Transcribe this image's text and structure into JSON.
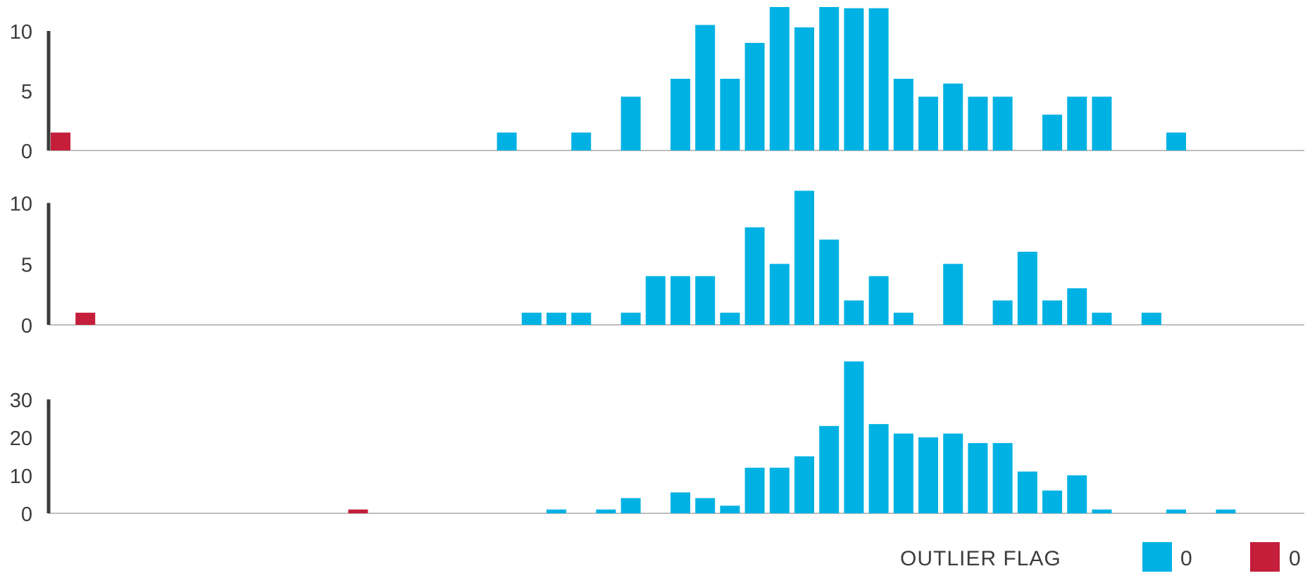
{
  "colors": {
    "normal": "#00b2e3",
    "outlier": "#c41e3a",
    "axis": "#3c3c3c",
    "baseline": "#bdbdbd"
  },
  "legend": {
    "title": "OUTLIER FLAG",
    "items": [
      {
        "label": "0",
        "color": "#00b2e3"
      },
      {
        "label": "0",
        "color": "#c41e3a"
      }
    ]
  },
  "chart_data": [
    {
      "type": "bar",
      "ylim": [
        0,
        12
      ],
      "yticks": [
        0,
        5,
        10
      ],
      "bars": [
        {
          "x": 0,
          "value": 1.5,
          "group": "outlier"
        },
        {
          "x": 18,
          "value": 1.5,
          "group": "normal"
        },
        {
          "x": 21,
          "value": 1.5,
          "group": "normal"
        },
        {
          "x": 23,
          "value": 4.5,
          "group": "normal"
        },
        {
          "x": 25,
          "value": 6,
          "group": "normal"
        },
        {
          "x": 26,
          "value": 10.5,
          "group": "normal"
        },
        {
          "x": 27,
          "value": 6,
          "group": "normal"
        },
        {
          "x": 28,
          "value": 9,
          "group": "normal"
        },
        {
          "x": 29,
          "value": 12,
          "group": "normal"
        },
        {
          "x": 30,
          "value": 10.3,
          "group": "normal"
        },
        {
          "x": 31,
          "value": 12,
          "group": "normal"
        },
        {
          "x": 32,
          "value": 11.9,
          "group": "normal"
        },
        {
          "x": 33,
          "value": 11.9,
          "group": "normal"
        },
        {
          "x": 34,
          "value": 6,
          "group": "normal"
        },
        {
          "x": 35,
          "value": 4.5,
          "group": "normal"
        },
        {
          "x": 36,
          "value": 5.6,
          "group": "normal"
        },
        {
          "x": 37,
          "value": 4.5,
          "group": "normal"
        },
        {
          "x": 38,
          "value": 4.5,
          "group": "normal"
        },
        {
          "x": 40,
          "value": 3,
          "group": "normal"
        },
        {
          "x": 41,
          "value": 4.5,
          "group": "normal"
        },
        {
          "x": 42,
          "value": 4.5,
          "group": "normal"
        },
        {
          "x": 45,
          "value": 1.5,
          "group": "normal"
        }
      ]
    },
    {
      "type": "bar",
      "ylim": [
        0,
        12
      ],
      "yticks": [
        0,
        5,
        10
      ],
      "bars": [
        {
          "x": 1,
          "value": 1,
          "group": "outlier"
        },
        {
          "x": 19,
          "value": 1,
          "group": "normal"
        },
        {
          "x": 20,
          "value": 1,
          "group": "normal"
        },
        {
          "x": 21,
          "value": 1,
          "group": "normal"
        },
        {
          "x": 23,
          "value": 1,
          "group": "normal"
        },
        {
          "x": 24,
          "value": 4,
          "group": "normal"
        },
        {
          "x": 25,
          "value": 4,
          "group": "normal"
        },
        {
          "x": 26,
          "value": 4,
          "group": "normal"
        },
        {
          "x": 27,
          "value": 1,
          "group": "normal"
        },
        {
          "x": 28,
          "value": 8,
          "group": "normal"
        },
        {
          "x": 29,
          "value": 5,
          "group": "normal"
        },
        {
          "x": 30,
          "value": 11,
          "group": "normal"
        },
        {
          "x": 31,
          "value": 7,
          "group": "normal"
        },
        {
          "x": 32,
          "value": 2,
          "group": "normal"
        },
        {
          "x": 33,
          "value": 4,
          "group": "normal"
        },
        {
          "x": 34,
          "value": 1,
          "group": "normal"
        },
        {
          "x": 36,
          "value": 5,
          "group": "normal"
        },
        {
          "x": 38,
          "value": 2,
          "group": "normal"
        },
        {
          "x": 39,
          "value": 6,
          "group": "normal"
        },
        {
          "x": 40,
          "value": 2,
          "group": "normal"
        },
        {
          "x": 41,
          "value": 3,
          "group": "normal"
        },
        {
          "x": 42,
          "value": 1,
          "group": "normal"
        },
        {
          "x": 44,
          "value": 1,
          "group": "normal"
        }
      ]
    },
    {
      "type": "bar",
      "ylim": [
        0,
        40
      ],
      "yticks": [
        0,
        10,
        20,
        30
      ],
      "bars": [
        {
          "x": 12,
          "value": 1,
          "group": "outlier"
        },
        {
          "x": 20,
          "value": 1,
          "group": "normal"
        },
        {
          "x": 22,
          "value": 1,
          "group": "normal"
        },
        {
          "x": 23,
          "value": 4,
          "group": "normal"
        },
        {
          "x": 25,
          "value": 5.5,
          "group": "normal"
        },
        {
          "x": 26,
          "value": 4,
          "group": "normal"
        },
        {
          "x": 27,
          "value": 2,
          "group": "normal"
        },
        {
          "x": 28,
          "value": 12,
          "group": "normal"
        },
        {
          "x": 29,
          "value": 12,
          "group": "normal"
        },
        {
          "x": 30,
          "value": 15,
          "group": "normal"
        },
        {
          "x": 31,
          "value": 23,
          "group": "normal"
        },
        {
          "x": 32,
          "value": 40,
          "group": "normal"
        },
        {
          "x": 33,
          "value": 23.5,
          "group": "normal"
        },
        {
          "x": 34,
          "value": 21,
          "group": "normal"
        },
        {
          "x": 35,
          "value": 20,
          "group": "normal"
        },
        {
          "x": 36,
          "value": 21,
          "group": "normal"
        },
        {
          "x": 37,
          "value": 18.5,
          "group": "normal"
        },
        {
          "x": 38,
          "value": 18.5,
          "group": "normal"
        },
        {
          "x": 39,
          "value": 11,
          "group": "normal"
        },
        {
          "x": 40,
          "value": 6,
          "group": "normal"
        },
        {
          "x": 41,
          "value": 10,
          "group": "normal"
        },
        {
          "x": 42,
          "value": 1,
          "group": "normal"
        },
        {
          "x": 45,
          "value": 1,
          "group": "normal"
        },
        {
          "x": 47,
          "value": 1,
          "group": "normal"
        }
      ]
    }
  ]
}
